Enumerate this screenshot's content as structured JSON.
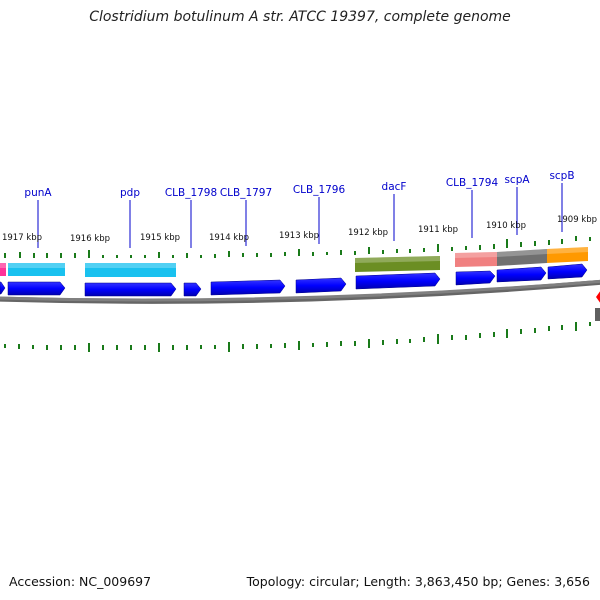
{
  "title": "Clostridium botulinum A str. ATCC 19397, complete genome",
  "footer": {
    "accession": "Accession: NC_009697",
    "summary": "Topology: circular; Length: 3,863,450 bp; Genes: 3,656"
  },
  "colors": {
    "gene_label": "#0000cc",
    "label_line": "#0000cc",
    "tick": "#1a7a1a",
    "backbone": "#808080",
    "cds_forward": "#0000ff",
    "cyan_feature": "#19c1ef",
    "pink_feature": "#ff3399",
    "olive_feature": "#6b8e23",
    "salmon_feature": "#f08080",
    "gray_feature": "#707070",
    "orange_feature": "#ff9900",
    "red_marker": "#ff0000"
  },
  "gene_labels": [
    "punA",
    "pdp",
    "CLB_1798",
    "CLB_1797",
    "CLB_1796",
    "dacF",
    "CLB_1794",
    "scpA",
    "scpB"
  ],
  "position_labels": [
    "1917 kbp",
    "1916 kbp",
    "1915 kbp",
    "1914 kbp",
    "1913 kbp",
    "1912 kbp",
    "1911 kbp",
    "1910 kbp",
    "1909 kbp"
  ],
  "features": [
    {
      "name": "pink-feature",
      "color": "pink_feature"
    },
    {
      "name": "punA-feature",
      "color": "cyan_feature"
    },
    {
      "name": "pdp-feature",
      "color": "cyan_feature"
    },
    {
      "name": "dacF-feature",
      "color": "olive_feature"
    },
    {
      "name": "CLB_1794-feature",
      "color": "salmon_feature"
    },
    {
      "name": "scpA-feature",
      "color": "gray_feature"
    },
    {
      "name": "scpB-feature",
      "color": "orange_feature"
    }
  ]
}
